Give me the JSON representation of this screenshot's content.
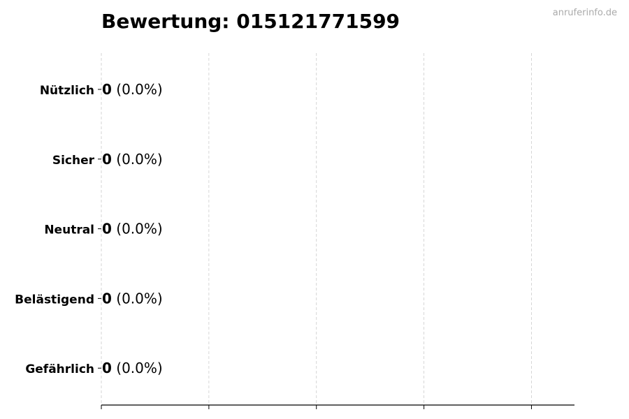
{
  "chart_data": {
    "type": "bar",
    "orientation": "horizontal",
    "title": "Bewertung: 015121771599",
    "watermark": "anruferinfo.de",
    "categories": [
      "Nützlich",
      "Sicher",
      "Neutral",
      "Belästigend",
      "Gefährlich"
    ],
    "values": [
      0,
      0,
      0,
      0,
      0
    ],
    "percent_labels": [
      "(0.0%)",
      "(0.0%)",
      "(0.0%)",
      "(0.0%)",
      "(0.0%)"
    ],
    "value_labels": [
      "0",
      "0",
      "0",
      "0",
      "0"
    ],
    "xlim": [
      0,
      4.4
    ],
    "xticks": [
      0,
      1,
      2,
      3,
      4
    ],
    "xtick_labels_shown": false,
    "grid": "x, dashed",
    "colors": {
      "bar_edge": "#000000",
      "grid": "#cccccc",
      "watermark": "#aaaaaa"
    }
  }
}
